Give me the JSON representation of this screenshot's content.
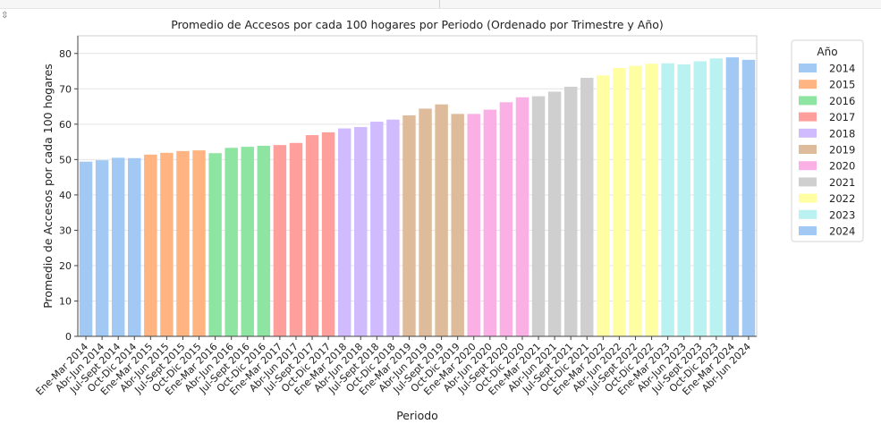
{
  "cell_toolbar": {
    "icon": "expand-output-icon"
  },
  "chart_data": {
    "type": "bar",
    "title": "Promedio de Accesos por cada 100 hogares por Periodo (Ordenado por Trimestre y Año)",
    "xlabel": "Periodo",
    "ylabel": "Promedio de Accesos por cada 100 hogares",
    "ylim": [
      0,
      85
    ],
    "yticks": [
      0,
      10,
      20,
      30,
      40,
      50,
      60,
      70,
      80
    ],
    "grid": true,
    "legend": {
      "title": "Año",
      "placement": "outside-right"
    },
    "categories": [
      "Ene-Mar 2014",
      "Abr-Jun 2014",
      "Jul-Sept 2014",
      "Oct-Dic 2014",
      "Ene-Mar 2015",
      "Abr-Jun 2015",
      "Jul-Sept 2015",
      "Oct-Dic 2015",
      "Ene-Mar 2016",
      "Abr-Jun 2016",
      "Jul-Sept 2016",
      "Oct-Dic 2016",
      "Ene-Mar 2017",
      "Abr-Jun 2017",
      "Jul-Sept 2017",
      "Oct-Dic 2017",
      "Ene-Mar 2018",
      "Abr-Jun 2018",
      "Jul-Sept 2018",
      "Oct-Dic 2018",
      "Ene-Mar 2019",
      "Abr-Jun 2019",
      "Jul-Sept 2019",
      "Oct-Dic 2019",
      "Ene-Mar 2020",
      "Abr-Jun 2020",
      "Jul-Sept 2020",
      "Oct-Dic 2020",
      "Ene-Mar 2021",
      "Abr-Jun 2021",
      "Jul-Sept 2021",
      "Oct-Dic 2021",
      "Ene-Mar 2022",
      "Abr-Jun 2022",
      "Jul-Sept 2022",
      "Oct-Dic 2022",
      "Ene-Mar 2023",
      "Abr-Jun 2023",
      "Jul-Sept 2023",
      "Oct-Dic 2023",
      "Ene-Mar 2024",
      "Abr-Jun 2024"
    ],
    "values": [
      49.4,
      49.8,
      50.5,
      50.4,
      51.4,
      51.9,
      52.4,
      52.6,
      51.8,
      53.3,
      53.6,
      53.9,
      54.1,
      54.7,
      56.9,
      57.7,
      58.8,
      59.2,
      60.7,
      61.3,
      62.5,
      64.4,
      65.6,
      62.9,
      62.9,
      64.1,
      66.2,
      67.6,
      67.9,
      69.2,
      70.6,
      73.1,
      73.8,
      75.9,
      76.5,
      77.1,
      77.2,
      76.9,
      77.8,
      78.6,
      78.9,
      78.2
    ],
    "series": [
      {
        "name": "2014",
        "color": "#a1c9f4"
      },
      {
        "name": "2015",
        "color": "#ffb482"
      },
      {
        "name": "2016",
        "color": "#8de5a1"
      },
      {
        "name": "2017",
        "color": "#ff9f9b"
      },
      {
        "name": "2018",
        "color": "#d0bbff"
      },
      {
        "name": "2019",
        "color": "#debb9b"
      },
      {
        "name": "2020",
        "color": "#fab0e4"
      },
      {
        "name": "2021",
        "color": "#cfcfcf"
      },
      {
        "name": "2022",
        "color": "#fffea3"
      },
      {
        "name": "2023",
        "color": "#b9f2f0"
      },
      {
        "name": "2024",
        "color": "#a1c9f4"
      }
    ]
  }
}
